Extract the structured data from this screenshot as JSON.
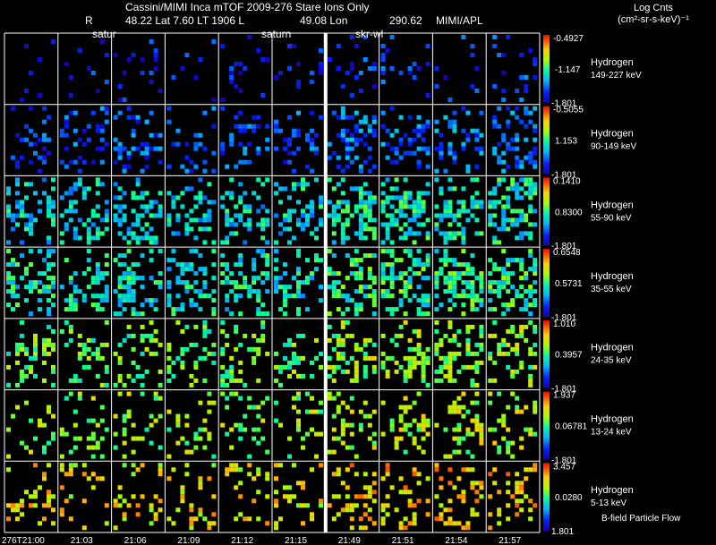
{
  "header": {
    "title": "Cassini/MIMI Inca mTOF  2009-276   Stare   Ions Only",
    "r_label": "R",
    "lat_value": "48.22 Lat 7.60 LT 1906 L",
    "lon_value": "49.08 Lon",
    "lon_val2": "290.62",
    "source": "MIMI/APL",
    "cbar_title_line1": "Log Cnts",
    "cbar_title_line2": "(cm²-sr-s-keV)⁻¹"
  },
  "overlay_labels": [
    "satur",
    "saturn",
    "skr-wl"
  ],
  "footer": {
    "flow_label": "B-field Particle Flow"
  },
  "chart_data": {
    "type": "heatmap",
    "time_labels": [
      "276T21:00",
      "21:03",
      "21:06",
      "21:09",
      "21:12",
      "21:15",
      "21:49",
      "21:51",
      "21:54",
      "21:57"
    ],
    "panels": [
      {
        "species": "Hydrogen",
        "energy": "149-227 keV",
        "cbar_max": "-0.4927",
        "cbar_mid": "-1.147",
        "cbar_min": "-1.801",
        "density": 0.08,
        "bias": 0.1
      },
      {
        "species": "Hydrogen",
        "energy": "90-149 keV",
        "cbar_max": "-0.5055",
        "cbar_mid": "1.153",
        "cbar_min": "-1.801",
        "density": 0.25,
        "bias": 0.18
      },
      {
        "species": "Hydrogen",
        "energy": "55-90 keV",
        "cbar_max": "0.1410",
        "cbar_mid": "0.8300",
        "cbar_min": "-1.801",
        "density": 0.38,
        "bias": 0.38
      },
      {
        "species": "Hydrogen",
        "energy": "35-55 keV",
        "cbar_max": "0.6548",
        "cbar_mid": "0.5731",
        "cbar_min": "-1.801",
        "density": 0.4,
        "bias": 0.42
      },
      {
        "species": "Hydrogen",
        "energy": "24-35 keV",
        "cbar_max": "1.010",
        "cbar_mid": "0.3957",
        "cbar_min": "-1.801",
        "density": 0.28,
        "bias": 0.55
      },
      {
        "species": "Hydrogen",
        "energy": "13-24 keV",
        "cbar_max": "1.937",
        "cbar_mid": "0.06781",
        "cbar_min": "-1.801",
        "density": 0.22,
        "bias": 0.6
      },
      {
        "species": "Hydrogen",
        "energy": "5-13 keV",
        "cbar_max": "3.457",
        "cbar_mid": "0.0280",
        "cbar_min": "1.801",
        "density": 0.2,
        "bias": 0.72
      }
    ]
  }
}
